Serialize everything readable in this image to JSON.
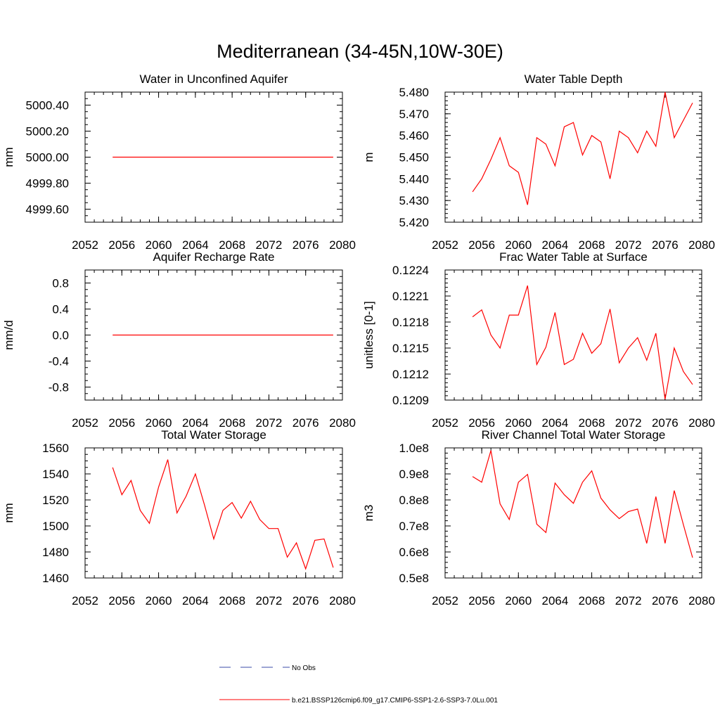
{
  "title": "Mediterranean (34-45N,10W-30E)",
  "colors": {
    "model": "#ff0000",
    "obs": "#3b4ba8",
    "axis": "#000000"
  },
  "legend": {
    "placement": "bottom-center",
    "obs_label": "No Obs",
    "model_label": "b.e21.BSSP126cmip6.f09_g17.CMIP6-SSP1-2.6-SSP3-7.0Lu.001"
  },
  "chart_data": [
    {
      "type": "line",
      "title": "Water in Unconfined Aquifer",
      "ylabel": "mm",
      "xlim": [
        2052,
        2080
      ],
      "x_ticks": [
        "2052",
        "2056",
        "2060",
        "2064",
        "2068",
        "2072",
        "2076",
        "2080"
      ],
      "ylim": [
        4999.5,
        5000.5
      ],
      "y_ticks": [
        4999.6,
        4999.8,
        5000.0,
        5000.2,
        5000.4
      ],
      "y_tick_labels": [
        "4999.60",
        "4999.80",
        "5000.00",
        "5000.20",
        "5000.40"
      ],
      "y_minor_step": 0.05,
      "series": [
        {
          "x": [
            2055,
            2056,
            2057,
            2058,
            2059,
            2060,
            2061,
            2062,
            2063,
            2064,
            2065,
            2066,
            2067,
            2068,
            2069,
            2070,
            2071,
            2072,
            2073,
            2074,
            2075,
            2076,
            2077,
            2078,
            2079
          ],
          "values": [
            5000,
            5000,
            5000,
            5000,
            5000,
            5000,
            5000,
            5000,
            5000,
            5000,
            5000,
            5000,
            5000,
            5000,
            5000,
            5000,
            5000,
            5000,
            5000,
            5000,
            5000,
            5000,
            5000,
            5000,
            5000
          ]
        }
      ]
    },
    {
      "type": "line",
      "title": "Water Table Depth",
      "ylabel": "m",
      "xlim": [
        2052,
        2080
      ],
      "x_ticks": [
        "2052",
        "2056",
        "2060",
        "2064",
        "2068",
        "2072",
        "2076",
        "2080"
      ],
      "ylim": [
        5.42,
        5.48
      ],
      "y_ticks": [
        5.42,
        5.43,
        5.44,
        5.45,
        5.46,
        5.47,
        5.48
      ],
      "y_tick_labels": [
        "5.420",
        "5.430",
        "5.440",
        "5.450",
        "5.460",
        "5.470",
        "5.480"
      ],
      "y_minor_step": 0.002,
      "series": [
        {
          "x": [
            2055,
            2056,
            2057,
            2058,
            2059,
            2060,
            2061,
            2062,
            2063,
            2064,
            2065,
            2066,
            2067,
            2068,
            2069,
            2070,
            2071,
            2072,
            2073,
            2074,
            2075,
            2076,
            2077,
            2078,
            2079
          ],
          "values": [
            5.434,
            5.44,
            5.449,
            5.459,
            5.446,
            5.443,
            5.428,
            5.459,
            5.456,
            5.446,
            5.464,
            5.466,
            5.451,
            5.46,
            5.457,
            5.44,
            5.462,
            5.459,
            5.452,
            5.462,
            5.455,
            5.48,
            5.459,
            5.467,
            5.475
          ]
        }
      ]
    },
    {
      "type": "line",
      "title": "Aquifer Recharge Rate",
      "ylabel": "mm/d",
      "xlim": [
        2052,
        2080
      ],
      "x_ticks": [
        "2052",
        "2056",
        "2060",
        "2064",
        "2068",
        "2072",
        "2076",
        "2080"
      ],
      "ylim": [
        -1.0,
        1.0
      ],
      "y_ticks": [
        -0.8,
        -0.4,
        0.0,
        0.4,
        0.8
      ],
      "y_tick_labels": [
        "-0.8",
        "-0.4",
        "0.0",
        "0.4",
        "0.8"
      ],
      "y_minor_step": 0.1,
      "series": [
        {
          "x": [
            2055,
            2056,
            2057,
            2058,
            2059,
            2060,
            2061,
            2062,
            2063,
            2064,
            2065,
            2066,
            2067,
            2068,
            2069,
            2070,
            2071,
            2072,
            2073,
            2074,
            2075,
            2076,
            2077,
            2078,
            2079
          ],
          "values": [
            0,
            0,
            0,
            0,
            0,
            0,
            0,
            0,
            0,
            0,
            0,
            0,
            0,
            0,
            0,
            0,
            0,
            0,
            0,
            0,
            0,
            0,
            0,
            0,
            0
          ]
        }
      ]
    },
    {
      "type": "line",
      "title": "Frac Water Table at Surface",
      "ylabel": "unitless [0-1]",
      "xlim": [
        2052,
        2080
      ],
      "x_ticks": [
        "2052",
        "2056",
        "2060",
        "2064",
        "2068",
        "2072",
        "2076",
        "2080"
      ],
      "ylim": [
        0.1209,
        0.1224
      ],
      "y_ticks": [
        0.1209,
        0.1212,
        0.1215,
        0.1218,
        0.1221,
        0.1224
      ],
      "y_tick_labels": [
        "0.1209",
        "0.1212",
        "0.1215",
        "0.1218",
        "0.1221",
        "0.1224"
      ],
      "y_minor_step": 5e-05,
      "series": [
        {
          "x": [
            2055,
            2056,
            2057,
            2058,
            2059,
            2060,
            2061,
            2062,
            2063,
            2064,
            2065,
            2066,
            2067,
            2068,
            2069,
            2070,
            2071,
            2072,
            2073,
            2074,
            2075,
            2076,
            2077,
            2078,
            2079
          ],
          "values": [
            0.12186,
            0.12194,
            0.12165,
            0.1215,
            0.12188,
            0.12188,
            0.12222,
            0.12131,
            0.12151,
            0.12191,
            0.12131,
            0.12137,
            0.12167,
            0.12144,
            0.12155,
            0.12195,
            0.12133,
            0.1215,
            0.12162,
            0.12136,
            0.12167,
            0.12091,
            0.1215,
            0.12123,
            0.12108
          ]
        }
      ]
    },
    {
      "type": "line",
      "title": "Total Water Storage",
      "ylabel": "mm",
      "xlim": [
        2052,
        2080
      ],
      "x_ticks": [
        "2052",
        "2056",
        "2060",
        "2064",
        "2068",
        "2072",
        "2076",
        "2080"
      ],
      "ylim": [
        1460,
        1560
      ],
      "y_ticks": [
        1460,
        1480,
        1500,
        1520,
        1540,
        1560
      ],
      "y_tick_labels": [
        "1460",
        "1480",
        "1500",
        "1520",
        "1540",
        "1560"
      ],
      "y_minor_step": 5,
      "series": [
        {
          "x": [
            2055,
            2056,
            2057,
            2058,
            2059,
            2060,
            2061,
            2062,
            2063,
            2064,
            2065,
            2066,
            2067,
            2068,
            2069,
            2070,
            2071,
            2072,
            2073,
            2074,
            2075,
            2076,
            2077,
            2078,
            2079
          ],
          "values": [
            1545,
            1524,
            1535,
            1512,
            1502,
            1530,
            1551,
            1510,
            1523,
            1540,
            1516,
            1490,
            1512,
            1518,
            1506,
            1519,
            1505,
            1498,
            1498,
            1476,
            1487,
            1467,
            1489,
            1490,
            1468
          ]
        }
      ]
    },
    {
      "type": "line",
      "title": "River Channel Total Water Storage",
      "ylabel": "m3",
      "xlim": [
        2052,
        2080
      ],
      "x_ticks": [
        "2052",
        "2056",
        "2060",
        "2064",
        "2068",
        "2072",
        "2076",
        "2080"
      ],
      "ylim": [
        50000000.0,
        100000000.0
      ],
      "y_ticks": [
        50000000.0,
        60000000.0,
        70000000.0,
        80000000.0,
        90000000.0,
        100000000.0
      ],
      "y_tick_labels": [
        "0.5e8",
        "0.6e8",
        "0.7e8",
        "0.8e8",
        "0.9e8",
        "1.0e8"
      ],
      "y_minor_step": 2000000,
      "series": [
        {
          "x": [
            2055,
            2056,
            2057,
            2058,
            2059,
            2060,
            2061,
            2062,
            2063,
            2064,
            2065,
            2066,
            2067,
            2068,
            2069,
            2070,
            2071,
            2072,
            2073,
            2074,
            2075,
            2076,
            2077,
            2078,
            2079
          ],
          "values": [
            89000000,
            86800000,
            99000000,
            78500000,
            72500000,
            86800000,
            89800000,
            70700000,
            67500000,
            86500000,
            82000000,
            78700000,
            86800000,
            91200000,
            80700000,
            76200000,
            72800000,
            75500000,
            76500000,
            63300000,
            81300000,
            63300000,
            83600000,
            70500000,
            57800000
          ]
        }
      ]
    }
  ]
}
